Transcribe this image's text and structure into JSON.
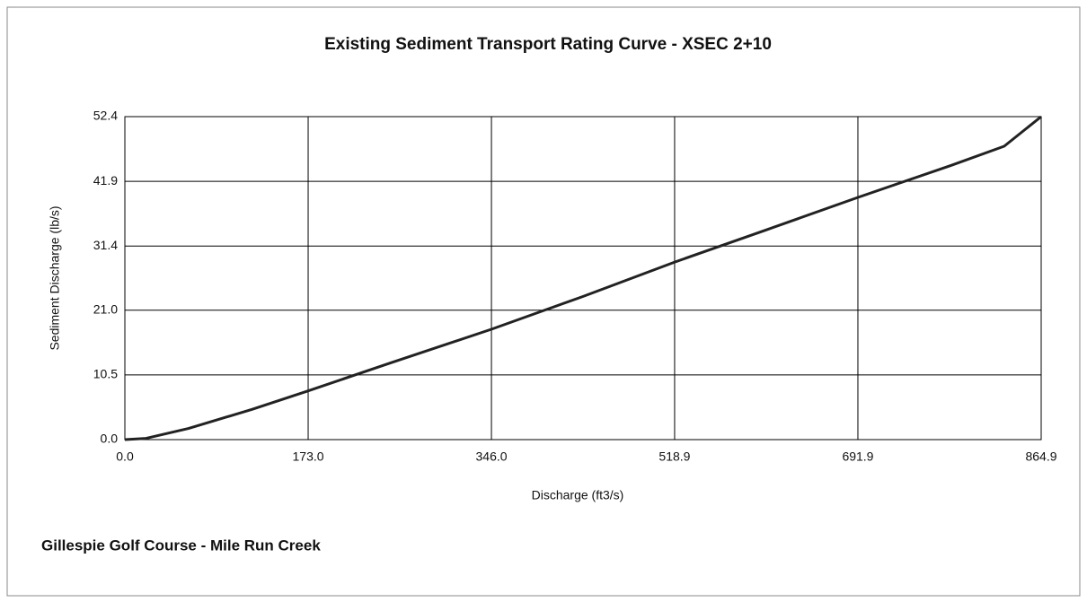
{
  "chart_data": {
    "type": "line",
    "title": "Existing Sediment Transport Rating Curve - XSEC 2+10",
    "xlabel": "Discharge (ft3/s)",
    "ylabel": "Sediment Discharge (lb/s)",
    "footer": "Gillespie Golf Course - Mile Run Creek",
    "x": [
      0,
      20,
      60,
      120,
      173,
      250,
      346,
      432,
      519,
      605,
      692,
      780,
      830,
      864.9
    ],
    "values": [
      0,
      0.2,
      1.8,
      4.9,
      7.9,
      12.4,
      17.9,
      23.2,
      28.8,
      34.0,
      39.3,
      44.5,
      47.6,
      52.4
    ],
    "color": "#222222",
    "xlim": [
      0,
      864.9
    ],
    "ylim": [
      0,
      52.4
    ],
    "xticks": [
      {
        "value": 0,
        "label": "0.0"
      },
      {
        "value": 173,
        "label": "173.0"
      },
      {
        "value": 346,
        "label": "346.0"
      },
      518.9,
      691.9,
      864.9
    ],
    "yticks": [
      {
        "value": 0,
        "label": "0.0"
      },
      10.5,
      {
        "value": 21,
        "label": "21.0"
      },
      31.4,
      41.9,
      52.4
    ],
    "grid": true
  }
}
